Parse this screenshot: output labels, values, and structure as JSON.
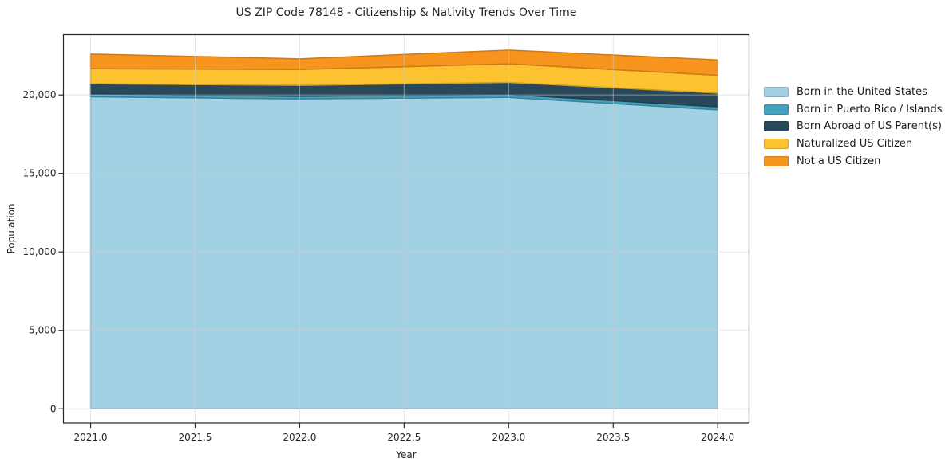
{
  "chart_data": {
    "type": "area",
    "stacked": true,
    "title": "US ZIP Code 78148 - Citizenship & Nativity Trends Over Time",
    "xlabel": "Year",
    "ylabel": "Population",
    "x": [
      2021,
      2022,
      2023,
      2024
    ],
    "series": [
      {
        "name": "Born in the United States",
        "color": "#a3d1e4",
        "values": [
          19880,
          19745,
          19845,
          19050
        ]
      },
      {
        "name": "Born in Puerto Rico / Islands",
        "color": "#42a1bf",
        "values": [
          185,
          170,
          190,
          190
        ]
      },
      {
        "name": "Born Abroad of US Parent(s)",
        "color": "#29495a",
        "values": [
          645,
          695,
          760,
          875
        ]
      },
      {
        "name": "Naturalized US Citizen",
        "color": "#fcc230",
        "values": [
          965,
          1015,
          1185,
          1135
        ]
      },
      {
        "name": "Not a US Citizen",
        "color": "#f7941e",
        "values": [
          930,
          675,
          875,
          980
        ]
      }
    ],
    "stacked_totals": [
      22605,
      22300,
      22855,
      22230
    ],
    "xticks": {
      "values": [
        2021,
        2021.5,
        2022,
        2022.5,
        2023,
        2023.5,
        2024
      ],
      "labels": [
        "2021.0",
        "2021.5",
        "2022.0",
        "2022.5",
        "2023.0",
        "2023.5",
        "2024.0"
      ]
    },
    "yticks": {
      "values": [
        0,
        5000,
        10000,
        15000,
        20000
      ],
      "labels": [
        "0",
        "5,000",
        "10,000",
        "15,000",
        "20,000"
      ]
    },
    "xlim": [
      2020.87,
      2024.15
    ],
    "ylim": [
      -900,
      23840
    ],
    "grid": true,
    "grid_color": "#cfcfcf",
    "frame_color": "#262626",
    "legend_position": "right of plot"
  }
}
